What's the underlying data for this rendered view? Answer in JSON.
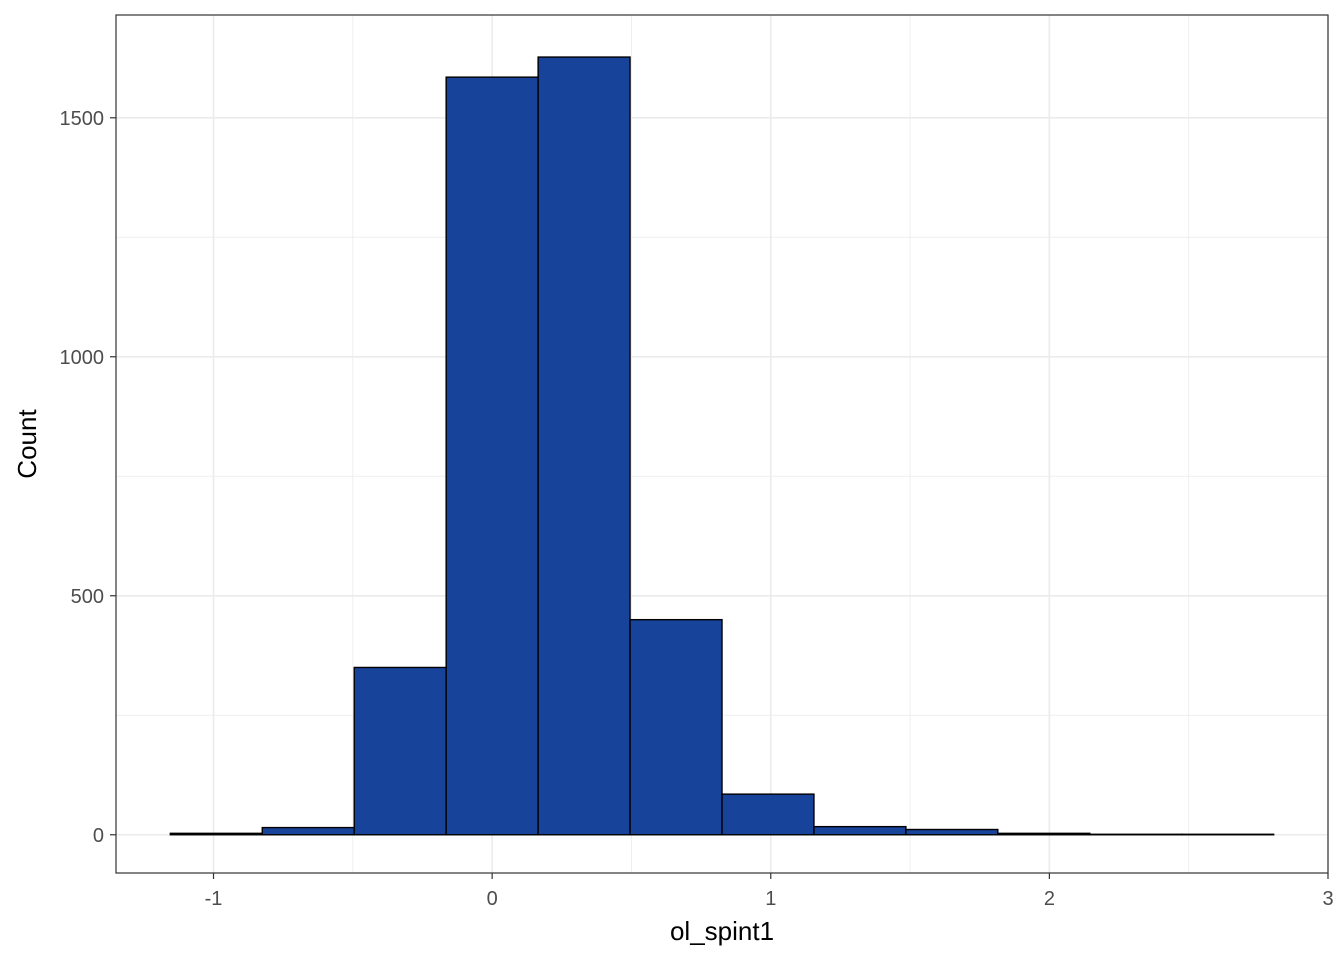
{
  "chart_data": {
    "type": "bar",
    "subtype": "histogram",
    "xlabel": "ol_spint1",
    "ylabel": "Count",
    "bins": [
      {
        "x0": -1.155,
        "x1": -0.825,
        "count": 3
      },
      {
        "x0": -0.825,
        "x1": -0.495,
        "count": 15
      },
      {
        "x0": -0.495,
        "x1": -0.165,
        "count": 350
      },
      {
        "x0": -0.165,
        "x1": 0.165,
        "count": 1585
      },
      {
        "x0": 0.165,
        "x1": 0.495,
        "count": 1627
      },
      {
        "x0": 0.495,
        "x1": 0.825,
        "count": 450
      },
      {
        "x0": 0.825,
        "x1": 1.155,
        "count": 85
      },
      {
        "x0": 1.155,
        "x1": 1.485,
        "count": 17
      },
      {
        "x0": 1.485,
        "x1": 1.815,
        "count": 11
      },
      {
        "x0": 1.815,
        "x1": 2.145,
        "count": 3
      },
      {
        "x0": 2.145,
        "x1": 2.475,
        "count": 1
      },
      {
        "x0": 2.475,
        "x1": 2.805,
        "count": 1
      }
    ],
    "xlim": [
      -1.35,
      3
    ],
    "ylim": [
      -80,
      1715
    ],
    "xticks": [
      -1,
      0,
      1,
      2,
      3
    ],
    "xtick_labels": [
      "-1",
      "0",
      "1",
      "2",
      "3"
    ],
    "yticks": [
      0,
      500,
      1000,
      1500
    ],
    "ytick_labels": [
      "0",
      "500",
      "1000",
      "1500"
    ],
    "x_minor_ticks": [
      -0.5,
      0.5,
      1.5,
      2.5
    ],
    "y_minor_ticks": [
      250,
      750,
      1250
    ],
    "grid": true,
    "colors": {
      "fill": "#18439A",
      "outline": "#000000",
      "grid": "#EBEBEB",
      "panel_border": "#333333",
      "tick_text": "#4D4D4D"
    }
  }
}
